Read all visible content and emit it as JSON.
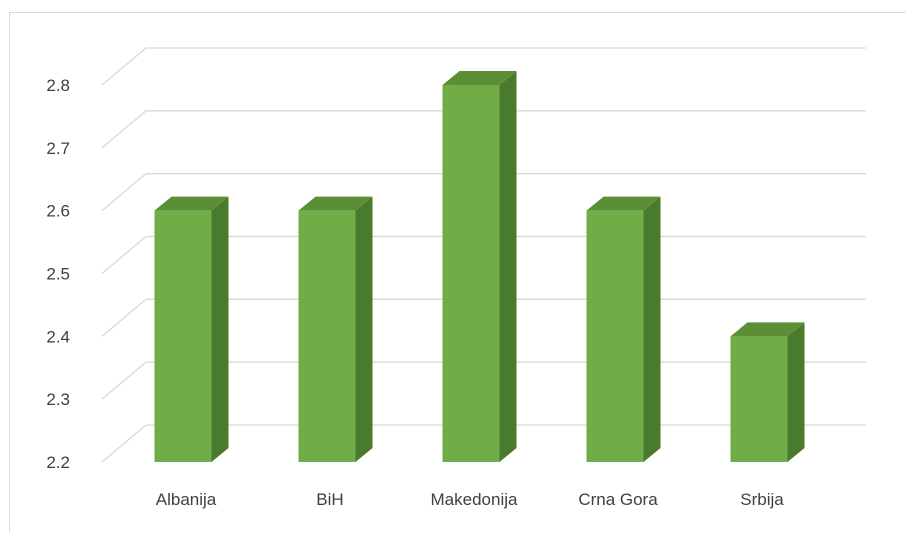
{
  "chart_data": {
    "type": "bar",
    "style": "3d-column",
    "title": "",
    "xlabel": "",
    "ylabel": "",
    "categories": [
      "Albanija",
      "BiH",
      "Makedonija",
      "Crna Gora",
      "Srbija"
    ],
    "values": [
      2.6,
      2.6,
      2.8,
      2.6,
      2.4
    ],
    "ylim": [
      2.2,
      2.8
    ],
    "yticks": [
      "2.2",
      "2.3",
      "2.4",
      "2.5",
      "2.6",
      "2.7",
      "2.8"
    ],
    "grid": true,
    "legend": "none",
    "colors": {
      "bar_front": "#70ad47",
      "bar_side": "#4a7a2c",
      "bar_top": "#5a8f36",
      "gridline": "#d9d9d9",
      "text": "#404040"
    }
  }
}
